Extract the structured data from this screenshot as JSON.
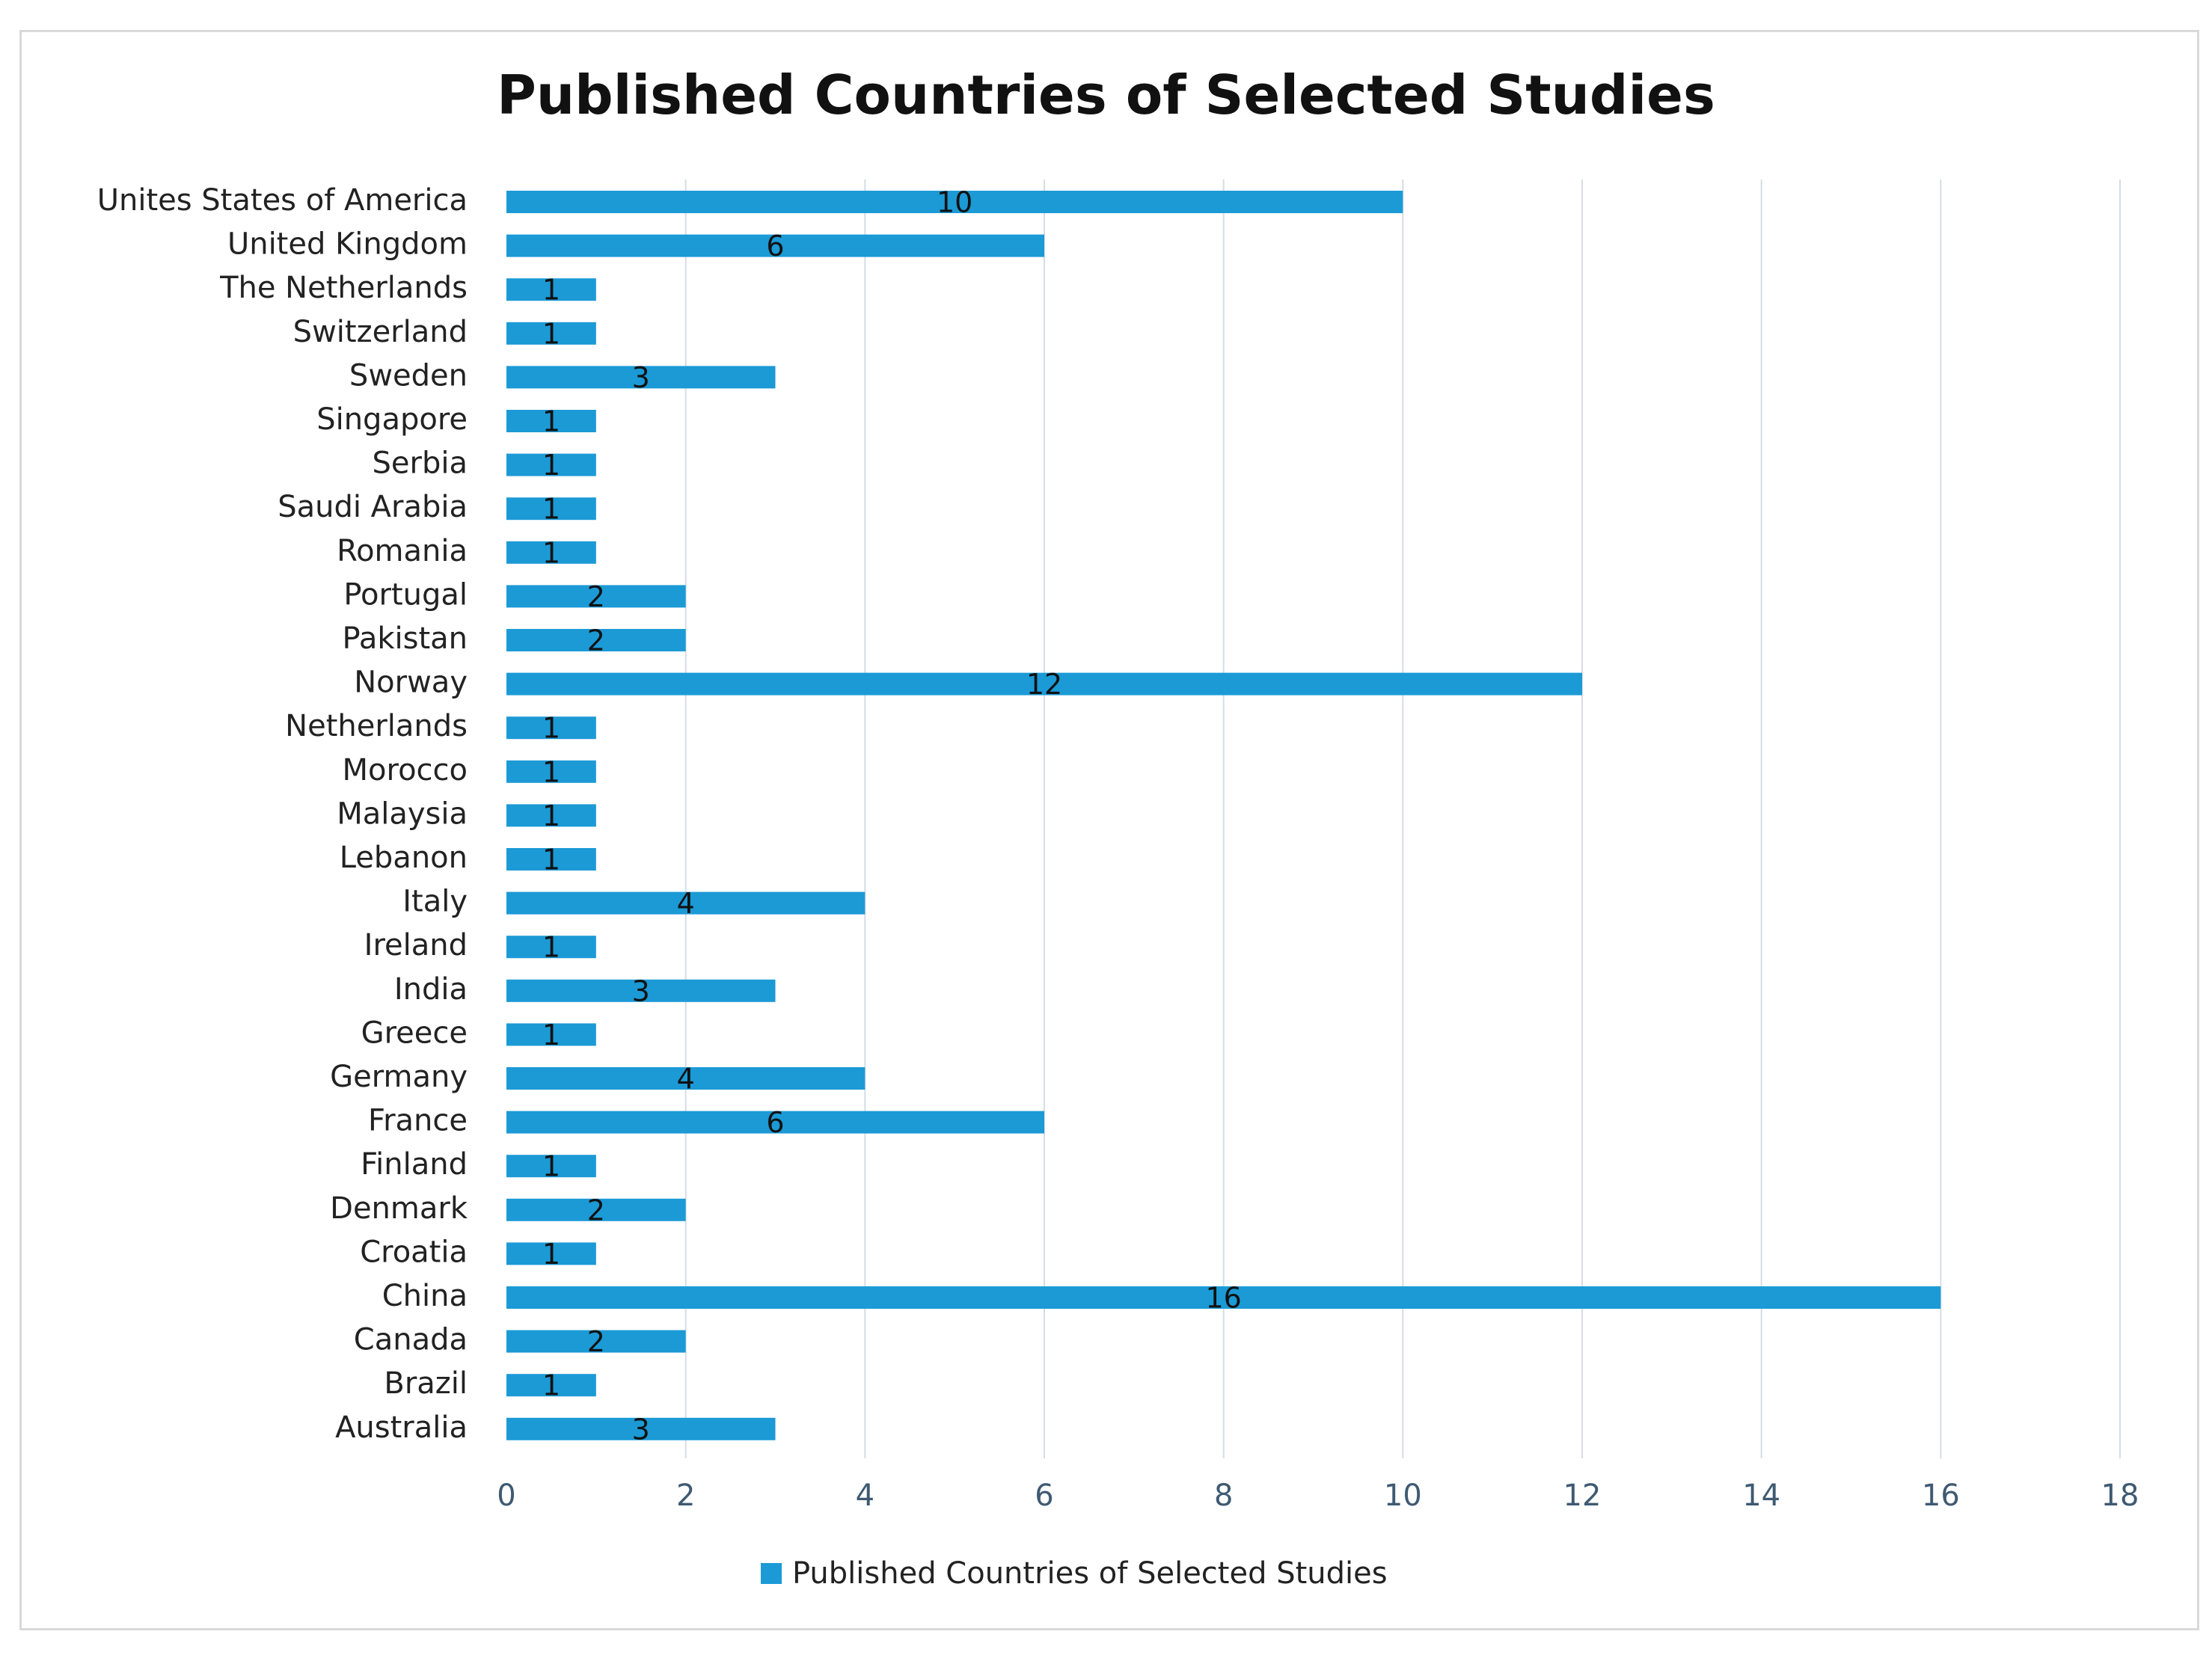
{
  "chart_data": {
    "type": "bar",
    "orientation": "horizontal",
    "title": "Published Countries of Selected Studies",
    "xlabel": "",
    "ylabel": "",
    "xlim": [
      0,
      18
    ],
    "xticks": [
      0,
      2,
      4,
      6,
      8,
      10,
      12,
      14,
      16,
      18
    ],
    "grid": "vertical",
    "legend": {
      "position": "bottom",
      "entries": [
        "Published Countries of Selected Studies"
      ]
    },
    "categories": [
      "Unites States of America",
      "United Kingdom",
      "The Netherlands",
      "Switzerland",
      "Sweden",
      "Singapore",
      "Serbia",
      "Saudi Arabia",
      "Romania",
      "Portugal",
      "Pakistan",
      "Norway",
      "Netherlands",
      "Morocco",
      "Malaysia",
      "Lebanon",
      "Italy",
      "Ireland",
      "India",
      "Greece",
      "Germany",
      "France",
      "Finland",
      "Denmark",
      "Croatia",
      "China",
      "Canada",
      "Brazil",
      "Australia"
    ],
    "series": [
      {
        "name": "Published Countries of Selected Studies",
        "color": "#1b9ad6",
        "values": [
          10,
          6,
          1,
          1,
          3,
          1,
          1,
          1,
          1,
          2,
          2,
          12,
          1,
          1,
          1,
          1,
          4,
          1,
          3,
          1,
          4,
          6,
          1,
          2,
          1,
          16,
          2,
          1,
          3
        ],
        "data_labels": true
      }
    ]
  },
  "colors": {
    "bar": "#1b9ad6",
    "grid": "#d5dde5",
    "axis_text": "#3f5a72",
    "category_text": "#222222",
    "data_label_text": "#111111"
  }
}
